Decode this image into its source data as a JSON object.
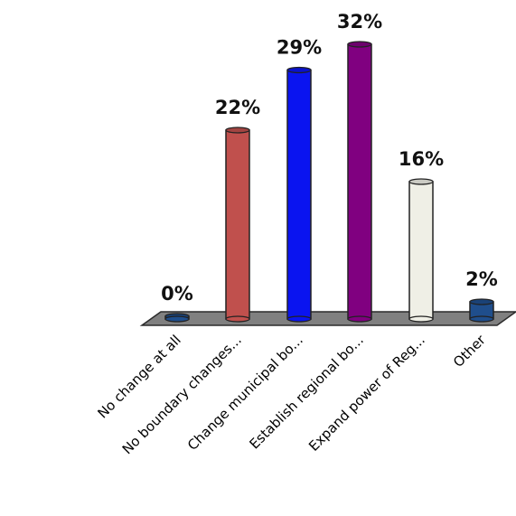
{
  "chart_data": {
    "type": "bar",
    "categories": [
      "No change at all",
      "No boundary changes...",
      "Change municipal bo...",
      "Establish regional bo...",
      "Expand power of Reg...",
      "Other"
    ],
    "values": [
      0,
      22,
      29,
      32,
      16,
      2
    ],
    "value_labels": [
      "0%",
      "22%",
      "29%",
      "32%",
      "16%",
      "2%"
    ],
    "unit": "%",
    "ylim": [
      0,
      32
    ],
    "grid": false,
    "legend": "none",
    "colors": [
      "#1f4e8c",
      "#c0504d",
      "#0a14f0",
      "#800080",
      "#efefe6",
      "#1f4e8c"
    ],
    "floor_color": "#808080"
  }
}
